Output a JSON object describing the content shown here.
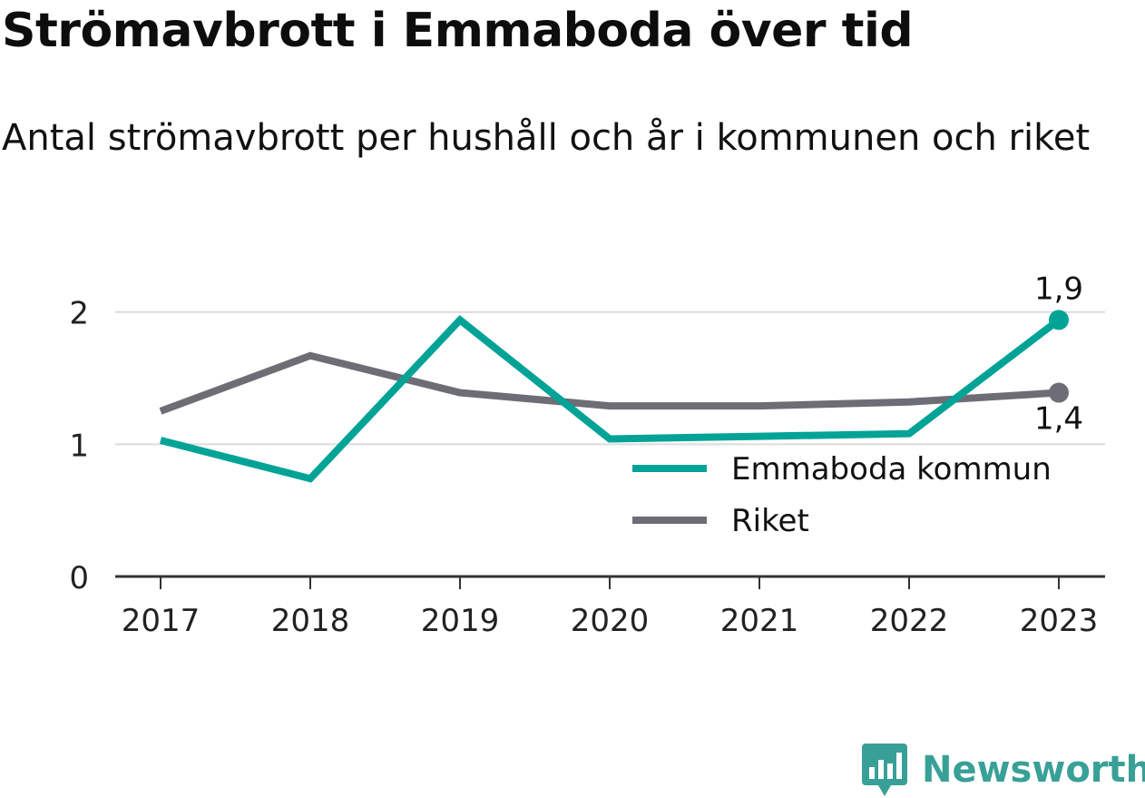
{
  "header": {
    "title": "Strömavbrott i Emmaboda över tid",
    "subtitle": "Antal strömavbrott per hushåll och år i kommunen och riket"
  },
  "brand": {
    "logo_text": "Newsworthy",
    "logo_icon": "newsworthy-chart-speech-bubble-icon",
    "logo_color": "#39a097"
  },
  "chart_data": {
    "type": "line",
    "categories": [
      "2017",
      "2018",
      "2019",
      "2020",
      "2021",
      "2022",
      "2023"
    ],
    "ylim": [
      0,
      2.3
    ],
    "yticks": [
      0,
      1,
      2
    ],
    "ytick_labels": [
      "0",
      "1",
      "2"
    ],
    "grid": true,
    "legend_position": "bottom-right inside plot",
    "series": [
      {
        "name": "Emmaboda kommun",
        "color": "#00a396",
        "values": [
          1.03,
          0.74,
          1.94,
          1.04,
          1.06,
          1.08,
          1.94
        ],
        "end_label": "1,9",
        "end_label_position": "above"
      },
      {
        "name": "Riket",
        "color": "#6e6d75",
        "values": [
          1.25,
          1.67,
          1.39,
          1.29,
          1.29,
          1.32,
          1.39
        ],
        "end_label": "1,4",
        "end_label_position": "below"
      }
    ]
  }
}
